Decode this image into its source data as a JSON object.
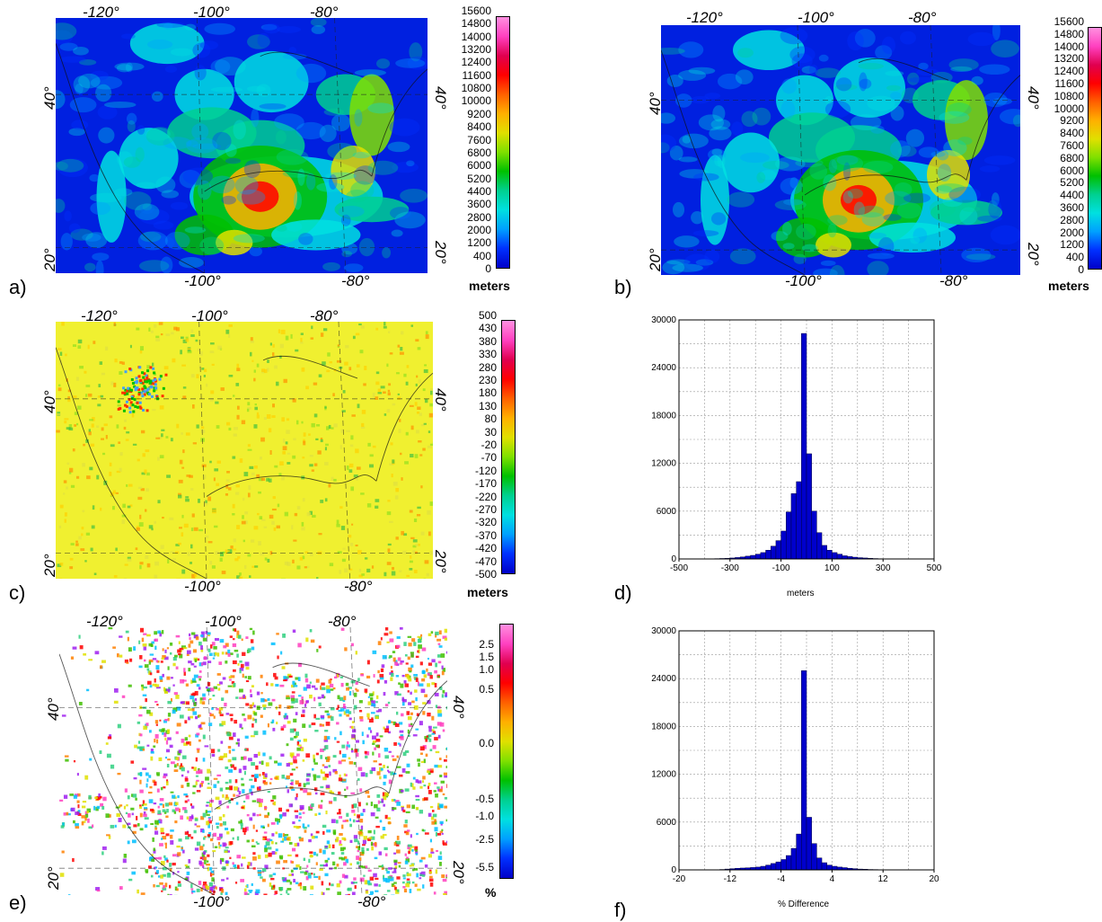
{
  "panels": {
    "a": {
      "letter": "a)",
      "unit": "meters",
      "colorbar": [
        "15600",
        "14800",
        "14000",
        "13200",
        "12400",
        "11600",
        "10800",
        "10000",
        "9200",
        "8400",
        "7600",
        "6800",
        "6000",
        "5200",
        "4400",
        "3600",
        "2800",
        "2000",
        "1200",
        "400",
        "0"
      ]
    },
    "b": {
      "letter": "b)",
      "unit": "meters",
      "colorbar": [
        "15600",
        "14800",
        "14000",
        "13200",
        "12400",
        "11600",
        "10800",
        "10000",
        "9200",
        "8400",
        "7600",
        "6800",
        "6000",
        "5200",
        "4400",
        "3600",
        "2800",
        "2000",
        "1200",
        "400",
        "0"
      ]
    },
    "c": {
      "letter": "c)",
      "unit": "meters",
      "colorbar": [
        "500",
        "430",
        "380",
        "330",
        "280",
        "230",
        "180",
        "130",
        "80",
        "30",
        "-20",
        "-70",
        "-120",
        "-170",
        "-220",
        "-270",
        "-320",
        "-370",
        "-420",
        "-470",
        "-500"
      ]
    },
    "d": {
      "letter": "d)",
      "xlabel": "meters"
    },
    "e": {
      "letter": "e)",
      "unit": "%",
      "colorbar": [
        "2.5",
        "1.5",
        "1.0",
        "0.5",
        "0.0",
        "-0.5",
        "-1.0",
        "-2.5",
        "-5.5"
      ]
    },
    "f": {
      "letter": "f)",
      "xlabel": "% Difference"
    }
  },
  "map_ticks": {
    "top": [
      "-120°",
      "-100°",
      "-80°"
    ],
    "bottom": [
      "-100°",
      "-80°"
    ],
    "left": [
      "40°",
      "20°"
    ],
    "right": [
      "40°",
      "20°"
    ]
  },
  "colors": {
    "ramp": [
      "#0000c8",
      "#0030ff",
      "#00a0ff",
      "#00e0e0",
      "#00d090",
      "#00c000",
      "#80e000",
      "#e0e000",
      "#ffb000",
      "#ff6000",
      "#ff0000",
      "#e00050",
      "#ff40c0",
      "#ff90e0"
    ],
    "hist_bar": "#0000cc",
    "diff_bg": "#f0f030"
  },
  "chart_data": [
    {
      "type": "bar",
      "title": "",
      "xlabel": "meters",
      "ylabel": "",
      "xlim": [
        -500,
        500
      ],
      "ylim": [
        0,
        30000
      ],
      "xticks": [
        "-500",
        "-300",
        "-100",
        "100",
        "300",
        "500"
      ],
      "yticks": [
        "0",
        "6000",
        "12000",
        "18000",
        "24000",
        "30000"
      ],
      "bin_width": 20,
      "bin_starts": [
        -500,
        -480,
        -460,
        -440,
        -420,
        -400,
        -380,
        -360,
        -340,
        -320,
        -300,
        -280,
        -260,
        -240,
        -220,
        -200,
        -180,
        -160,
        -140,
        -120,
        -100,
        -80,
        -60,
        -40,
        -20,
        0,
        20,
        40,
        60,
        80,
        100,
        120,
        140,
        160,
        180,
        200,
        220,
        240,
        260,
        280,
        300,
        320,
        340,
        360,
        380,
        400,
        420,
        440,
        460,
        480
      ],
      "values": [
        0,
        0,
        0,
        0,
        0,
        0,
        20,
        40,
        60,
        80,
        120,
        180,
        250,
        350,
        450,
        600,
        800,
        1100,
        1600,
        2300,
        3500,
        5900,
        8200,
        9700,
        28300,
        13200,
        6000,
        3300,
        1700,
        1100,
        800,
        600,
        400,
        300,
        220,
        160,
        120,
        80,
        50,
        30,
        20,
        10,
        0,
        0,
        0,
        0,
        0,
        0,
        0,
        0
      ],
      "grid": true
    },
    {
      "type": "bar",
      "title": "",
      "xlabel": "% Difference",
      "ylabel": "",
      "xlim": [
        -20,
        20
      ],
      "ylim": [
        0,
        30000
      ],
      "xticks": [
        "-20",
        "-12",
        "-4",
        "4",
        "12",
        "20"
      ],
      "yticks": [
        "0",
        "6000",
        "12000",
        "18000",
        "24000",
        "30000"
      ],
      "bin_width": 0.8,
      "bin_starts": [
        -20,
        -19.2,
        -18.4,
        -17.6,
        -16.8,
        -16,
        -15.2,
        -14.4,
        -13.6,
        -12.8,
        -12,
        -11.2,
        -10.4,
        -9.6,
        -8.8,
        -8,
        -7.2,
        -6.4,
        -5.6,
        -4.8,
        -4,
        -3.2,
        -2.4,
        -1.6,
        -0.8,
        0,
        0.8,
        1.6,
        2.4,
        3.2,
        4,
        4.8,
        5.6,
        6.4,
        7.2,
        8,
        8.8,
        9.6,
        10.4,
        11.2,
        12,
        12.8,
        13.6,
        14.4,
        15.2,
        16,
        16.8,
        17.6,
        18.4,
        19.2
      ],
      "values": [
        0,
        0,
        0,
        0,
        0,
        0,
        0,
        0,
        50,
        100,
        150,
        200,
        230,
        260,
        300,
        350,
        450,
        600,
        800,
        1000,
        1300,
        1800,
        2700,
        4500,
        25000,
        6600,
        3300,
        1500,
        900,
        600,
        450,
        350,
        280,
        200,
        150,
        100,
        80,
        50,
        40,
        20,
        20,
        10,
        0,
        0,
        0,
        0,
        0,
        0,
        0,
        0
      ],
      "grid": true
    }
  ]
}
